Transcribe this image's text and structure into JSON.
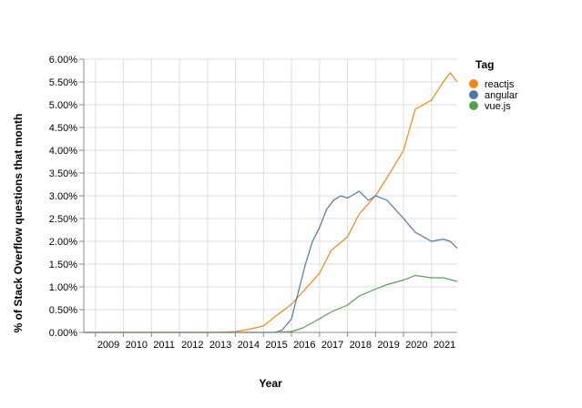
{
  "chart_data": {
    "type": "line",
    "title": "",
    "xlabel": "Year",
    "ylabel": "% of Stack Overflow questions that month",
    "x_ticks": [
      "2009",
      "2010",
      "2011",
      "2012",
      "2013",
      "2014",
      "2015",
      "2016",
      "2017",
      "2018",
      "2019",
      "2020",
      "2021"
    ],
    "y_ticks": [
      "0.00%",
      "0.50%",
      "1.00%",
      "1.50%",
      "2.00%",
      "2.50%",
      "3.00%",
      "3.50%",
      "4.00%",
      "4.50%",
      "5.00%",
      "5.50%",
      "6.00%"
    ],
    "xlim": [
      "2008-08",
      "2021-12"
    ],
    "ylim": [
      0,
      6.0
    ],
    "grid": true,
    "legend": {
      "title": "Tag",
      "position": "right"
    },
    "series": [
      {
        "name": "reactjs",
        "color": "#f58518",
        "points": [
          [
            "2008-08",
            0
          ],
          [
            "2013-06",
            0
          ],
          [
            "2014-01",
            0.02
          ],
          [
            "2014-06",
            0.06
          ],
          [
            "2015-01",
            0.14
          ],
          [
            "2015-06",
            0.35
          ],
          [
            "2016-01",
            0.62
          ],
          [
            "2016-06",
            0.9
          ],
          [
            "2017-01",
            1.3
          ],
          [
            "2017-06",
            1.8
          ],
          [
            "2018-01",
            2.1
          ],
          [
            "2018-06",
            2.6
          ],
          [
            "2019-01",
            3.0
          ],
          [
            "2019-06",
            3.4
          ],
          [
            "2020-01",
            4.0
          ],
          [
            "2020-06",
            4.9
          ],
          [
            "2021-01",
            5.1
          ],
          [
            "2021-06",
            5.5
          ],
          [
            "2021-09",
            5.7
          ],
          [
            "2021-12",
            5.5
          ]
        ]
      },
      {
        "name": "angular",
        "color": "#4c78a8",
        "points": [
          [
            "2008-08",
            0
          ],
          [
            "2015-06",
            0
          ],
          [
            "2015-09",
            0.05
          ],
          [
            "2016-01",
            0.3
          ],
          [
            "2016-04",
            0.9
          ],
          [
            "2016-07",
            1.5
          ],
          [
            "2016-10",
            2.0
          ],
          [
            "2017-01",
            2.3
          ],
          [
            "2017-04",
            2.7
          ],
          [
            "2017-07",
            2.9
          ],
          [
            "2017-10",
            3.0
          ],
          [
            "2018-01",
            2.95
          ],
          [
            "2018-06",
            3.1
          ],
          [
            "2018-10",
            2.9
          ],
          [
            "2019-01",
            3.0
          ],
          [
            "2019-06",
            2.9
          ],
          [
            "2020-01",
            2.5
          ],
          [
            "2020-06",
            2.2
          ],
          [
            "2021-01",
            2.0
          ],
          [
            "2021-06",
            2.05
          ],
          [
            "2021-09",
            2.0
          ],
          [
            "2021-12",
            1.85
          ]
        ]
      },
      {
        "name": "vue.js",
        "color": "#54a24b",
        "points": [
          [
            "2008-08",
            0
          ],
          [
            "2015-06",
            0
          ],
          [
            "2016-01",
            0.02
          ],
          [
            "2016-06",
            0.1
          ],
          [
            "2017-01",
            0.3
          ],
          [
            "2017-06",
            0.45
          ],
          [
            "2018-01",
            0.6
          ],
          [
            "2018-06",
            0.8
          ],
          [
            "2019-01",
            0.95
          ],
          [
            "2019-06",
            1.05
          ],
          [
            "2020-01",
            1.15
          ],
          [
            "2020-06",
            1.25
          ],
          [
            "2021-01",
            1.2
          ],
          [
            "2021-06",
            1.2
          ],
          [
            "2021-12",
            1.12
          ]
        ]
      }
    ]
  }
}
